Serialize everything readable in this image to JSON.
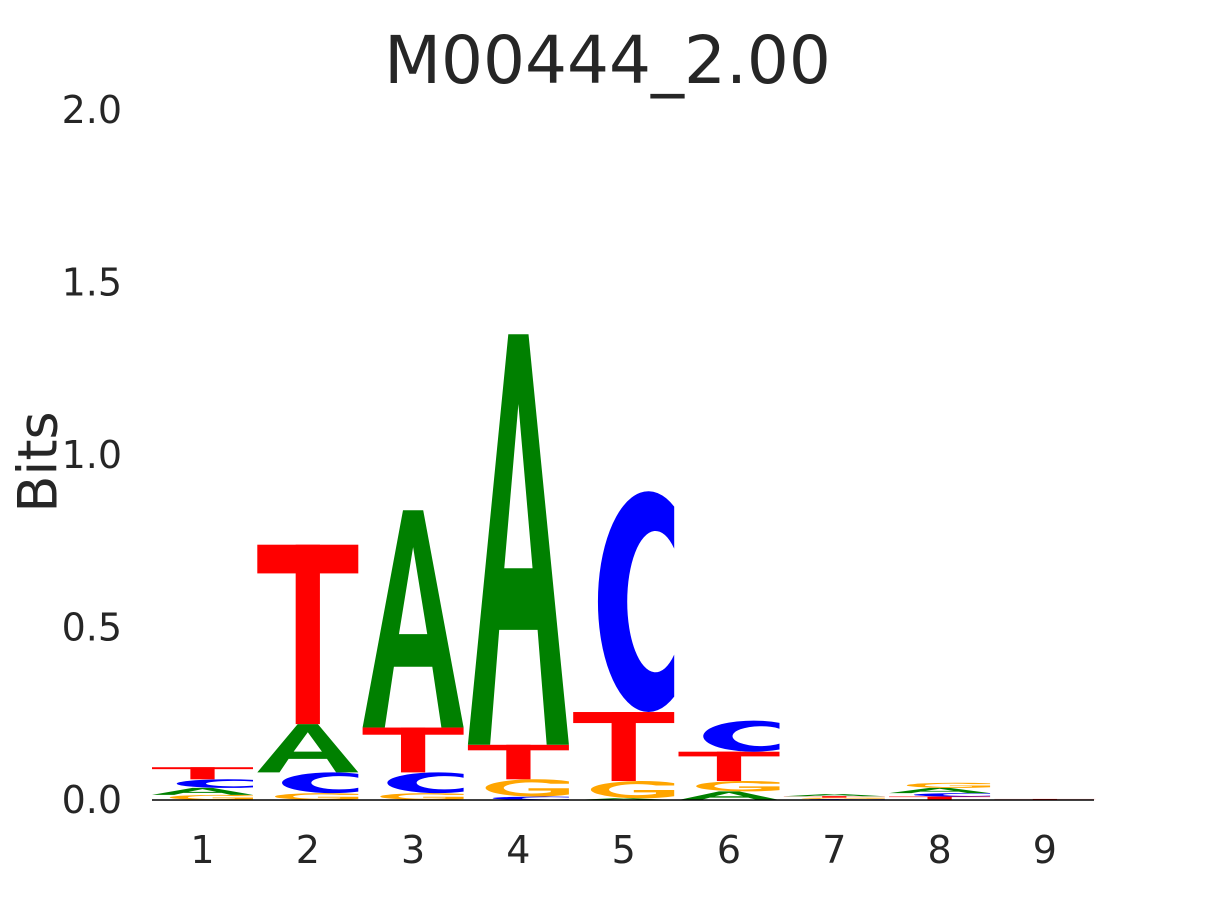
{
  "chart_data": {
    "type": "sequence-logo",
    "title": "M00444_2.00",
    "ylabel": "Bits",
    "xlabel": "",
    "ylim": [
      0,
      2.0
    ],
    "yticks": [
      "0.0",
      "0.5",
      "1.0",
      "1.5",
      "2.0"
    ],
    "positions": [
      "1",
      "2",
      "3",
      "4",
      "5",
      "6",
      "7",
      "8",
      "9"
    ],
    "grid": false,
    "colors": {
      "A": "#008000",
      "C": "#0000ff",
      "G": "#ffa500",
      "T": "#ff0000"
    },
    "stacks": [
      [
        {
          "letter": "G",
          "bits": 0.015
        },
        {
          "letter": "A",
          "bits": 0.02
        },
        {
          "letter": "C",
          "bits": 0.025
        },
        {
          "letter": "T",
          "bits": 0.035
        }
      ],
      [
        {
          "letter": "G",
          "bits": 0.02
        },
        {
          "letter": "C",
          "bits": 0.06
        },
        {
          "letter": "A",
          "bits": 0.14
        },
        {
          "letter": "T",
          "bits": 0.52
        }
      ],
      [
        {
          "letter": "G",
          "bits": 0.02
        },
        {
          "letter": "C",
          "bits": 0.06
        },
        {
          "letter": "T",
          "bits": 0.13
        },
        {
          "letter": "A",
          "bits": 0.63
        }
      ],
      [
        {
          "letter": "C",
          "bits": 0.01
        },
        {
          "letter": "G",
          "bits": 0.05
        },
        {
          "letter": "T",
          "bits": 0.1
        },
        {
          "letter": "A",
          "bits": 1.19
        }
      ],
      [
        {
          "letter": "A",
          "bits": 0.005
        },
        {
          "letter": "G",
          "bits": 0.05
        },
        {
          "letter": "T",
          "bits": 0.2
        },
        {
          "letter": "C",
          "bits": 0.64
        }
      ],
      [
        {
          "letter": "A",
          "bits": 0.025
        },
        {
          "letter": "G",
          "bits": 0.03
        },
        {
          "letter": "T",
          "bits": 0.085
        },
        {
          "letter": "C",
          "bits": 0.09
        }
      ],
      [
        {
          "letter": "C",
          "bits": 0.003
        },
        {
          "letter": "G",
          "bits": 0.004
        },
        {
          "letter": "T",
          "bits": 0.004
        },
        {
          "letter": "A",
          "bits": 0.006
        }
      ],
      [
        {
          "letter": "T",
          "bits": 0.01
        },
        {
          "letter": "C",
          "bits": 0.01
        },
        {
          "letter": "A",
          "bits": 0.015
        },
        {
          "letter": "G",
          "bits": 0.015
        }
      ],
      [
        {
          "letter": "T",
          "bits": 0.003
        }
      ]
    ]
  }
}
